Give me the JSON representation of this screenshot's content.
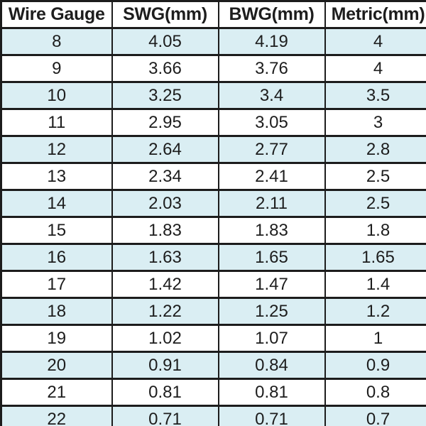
{
  "table": {
    "headers": [
      "Wire Gauge",
      "SWG(mm)",
      "BWG(mm)",
      "Metric(mm)"
    ],
    "rows": [
      [
        "8",
        "4.05",
        "4.19",
        "4"
      ],
      [
        "9",
        "3.66",
        "3.76",
        "4"
      ],
      [
        "10",
        "3.25",
        "3.4",
        "3.5"
      ],
      [
        "11",
        "2.95",
        "3.05",
        "3"
      ],
      [
        "12",
        "2.64",
        "2.77",
        "2.8"
      ],
      [
        "13",
        "2.34",
        "2.41",
        "2.5"
      ],
      [
        "14",
        "2.03",
        "2.11",
        "2.5"
      ],
      [
        "15",
        "1.83",
        "1.83",
        "1.8"
      ],
      [
        "16",
        "1.63",
        "1.65",
        "1.65"
      ],
      [
        "17",
        "1.42",
        "1.47",
        "1.4"
      ],
      [
        "18",
        "1.22",
        "1.25",
        "1.2"
      ],
      [
        "19",
        "1.02",
        "1.07",
        "1"
      ],
      [
        "20",
        "0.91",
        "0.84",
        "0.9"
      ],
      [
        "21",
        "0.81",
        "0.81",
        "0.8"
      ],
      [
        "22",
        "0.71",
        "0.71",
        "0.7"
      ]
    ]
  },
  "colors": {
    "stripe": "#daeef3",
    "border": "#1c1c1c",
    "header_bg": "#ffffff",
    "text": "#1d1d1d"
  },
  "chart_data": {
    "type": "table",
    "columns": [
      "Wire Gauge",
      "SWG(mm)",
      "BWG(mm)",
      "Metric(mm)"
    ],
    "rows": [
      [
        8,
        4.05,
        4.19,
        4
      ],
      [
        9,
        3.66,
        3.76,
        4
      ],
      [
        10,
        3.25,
        3.4,
        3.5
      ],
      [
        11,
        2.95,
        3.05,
        3
      ],
      [
        12,
        2.64,
        2.77,
        2.8
      ],
      [
        13,
        2.34,
        2.41,
        2.5
      ],
      [
        14,
        2.03,
        2.11,
        2.5
      ],
      [
        15,
        1.83,
        1.83,
        1.8
      ],
      [
        16,
        1.63,
        1.65,
        1.65
      ],
      [
        17,
        1.42,
        1.47,
        1.4
      ],
      [
        18,
        1.22,
        1.25,
        1.2
      ],
      [
        19,
        1.02,
        1.07,
        1
      ],
      [
        20,
        0.91,
        0.84,
        0.9
      ],
      [
        21,
        0.81,
        0.81,
        0.8
      ],
      [
        22,
        0.71,
        0.71,
        0.7
      ]
    ],
    "layout_hints": {
      "striped_rows": true,
      "stripe_color": "#daeef3",
      "grid": true,
      "header_bold": true
    }
  }
}
